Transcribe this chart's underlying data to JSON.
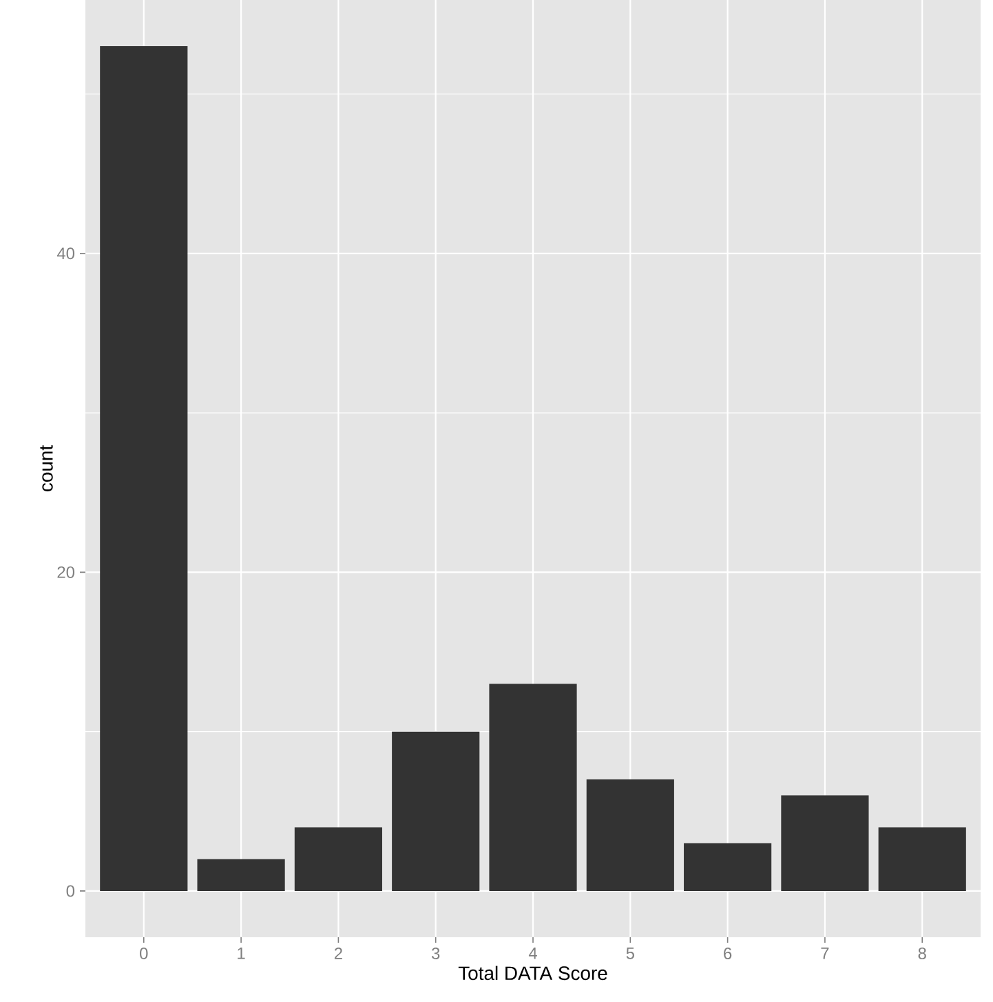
{
  "chart_data": {
    "type": "bar",
    "xlabel": "Total DATA Score",
    "ylabel": "count",
    "categories": [
      "0",
      "1",
      "2",
      "3",
      "4",
      "5",
      "6",
      "7",
      "8"
    ],
    "values": [
      53,
      2,
      4,
      10,
      13,
      7,
      3,
      6,
      4
    ],
    "color": "#333333",
    "ylim": [
      -2.9,
      55.9
    ],
    "yticks": [
      0,
      20,
      40
    ],
    "grid": true
  }
}
